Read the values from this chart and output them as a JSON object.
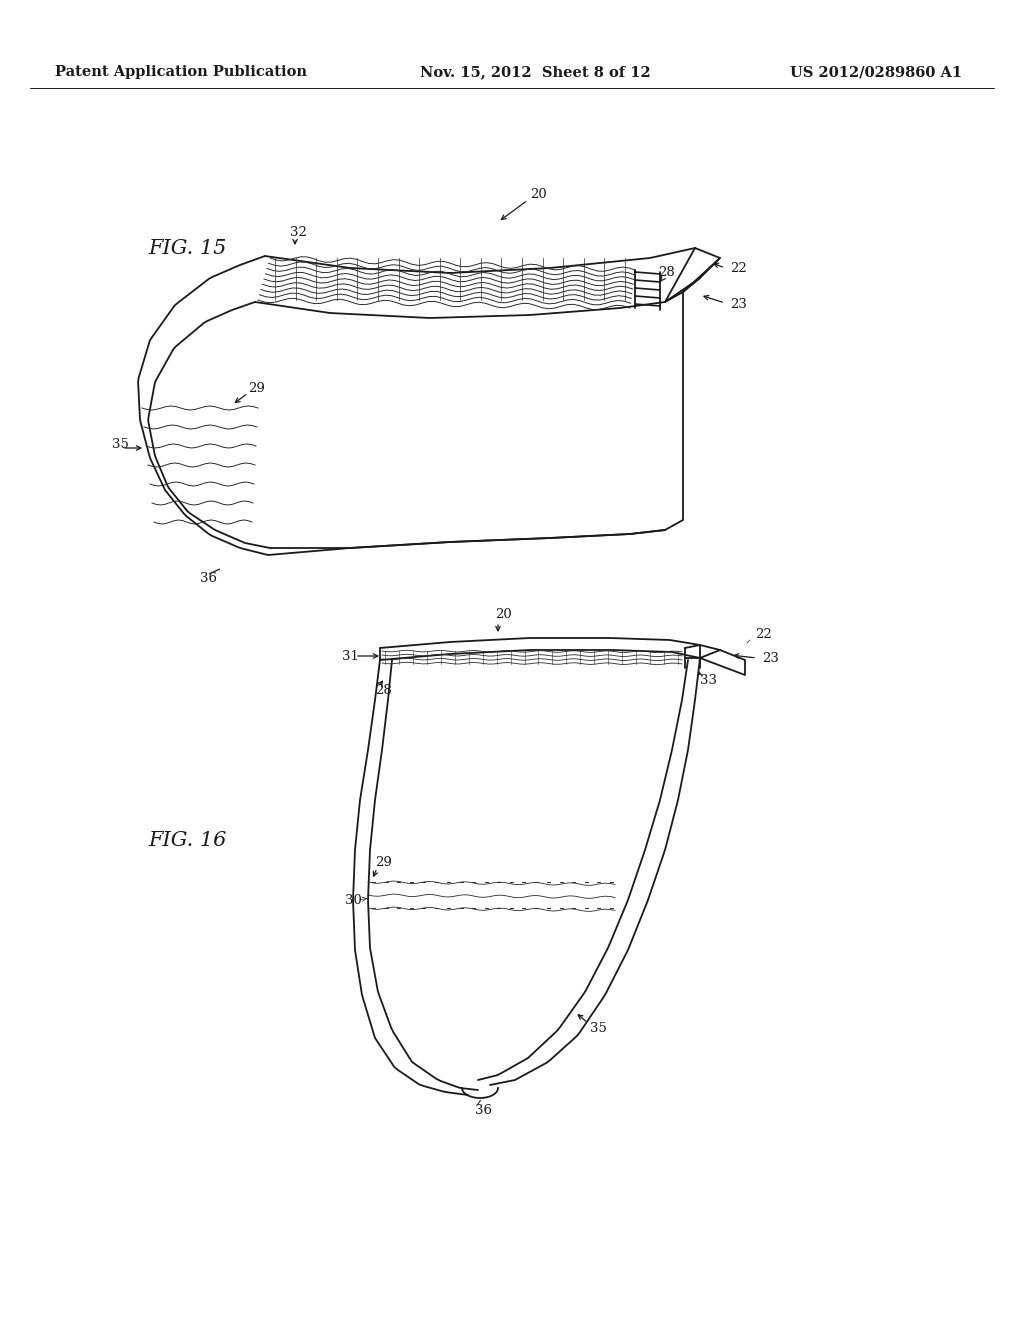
{
  "background_color": "#ffffff",
  "header_left": "Patent Application Publication",
  "header_center": "Nov. 15, 2012  Sheet 8 of 12",
  "header_right": "US 2012/0289860 A1",
  "header_fontsize": 10.5,
  "fig15_label": "FIG. 15",
  "fig16_label": "FIG. 16",
  "label_fontsize": 15,
  "ref_fontsize": 9.5,
  "line_color": "#1a1a1a",
  "line_width": 1.3
}
